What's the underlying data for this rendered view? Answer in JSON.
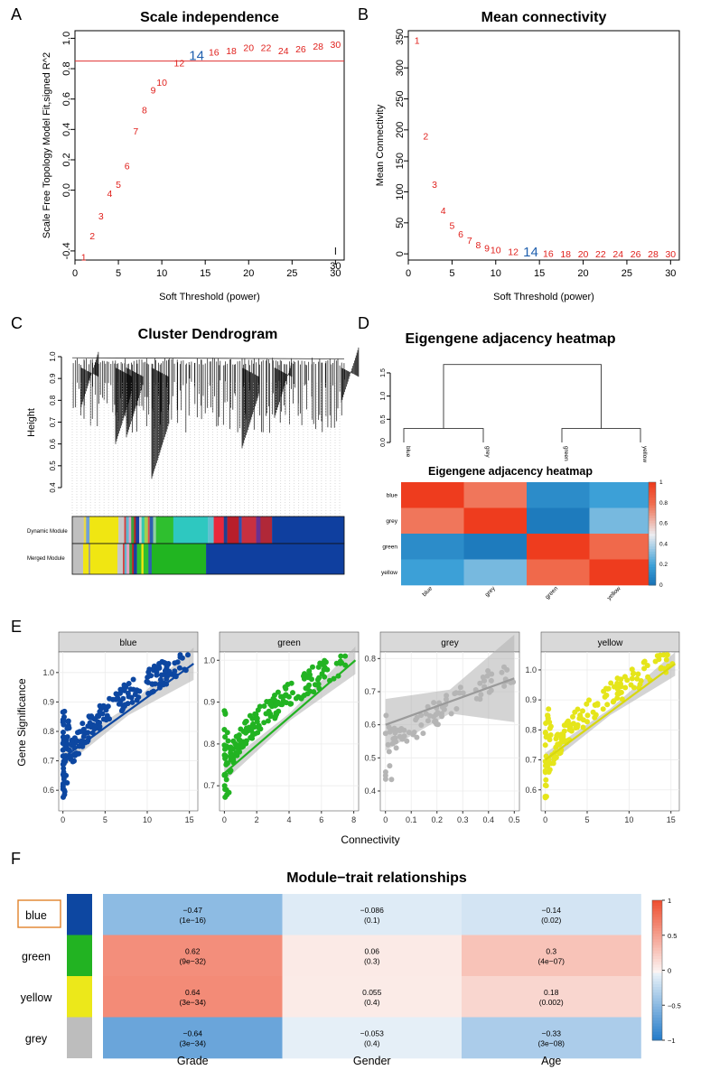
{
  "panels": {
    "a": {
      "letter": "A",
      "title": "Scale independence",
      "xlabel": "Soft Threshold (power)",
      "ylabel": "Scale Free Topology Model Fit,signed R^2"
    },
    "b": {
      "letter": "B",
      "title": "Mean connectivity",
      "xlabel": "Soft Threshold (power)",
      "ylabel": "Mean Connectivity"
    },
    "c": {
      "letter": "C",
      "title": "Cluster Dendrogram",
      "ylabel": "Height",
      "row1": "Dynamic Module",
      "row2": "Merged Module"
    },
    "d": {
      "letter": "D",
      "title": "Eigengene adjacency heatmap",
      "inner_title": "Eigengene adjacency heatmap"
    },
    "e": {
      "letter": "E",
      "ylabel": "Gene Significance",
      "xlabel": "Connectivity"
    },
    "f": {
      "letter": "F",
      "title": "Module−trait relationships"
    }
  },
  "chart_data": [
    {
      "id": "scale_independence",
      "type": "scatter",
      "title": "Scale independence",
      "xlabel": "Soft Threshold (power)",
      "ylabel": "Scale Free Topology Model Fit,signed R^2",
      "xlim": [
        0,
        31
      ],
      "ylim": [
        -0.46,
        1.05
      ],
      "xticks": [
        0,
        5,
        10,
        15,
        20,
        25,
        30
      ],
      "yticks": [
        -0.4,
        0.0,
        0.2,
        0.4,
        0.6,
        0.8,
        1.0
      ],
      "hline": 0.85,
      "highlight": 14,
      "stray_label": "30",
      "points": [
        {
          "x": 1,
          "y": -0.44,
          "label": "1"
        },
        {
          "x": 2,
          "y": -0.3,
          "label": "2"
        },
        {
          "x": 3,
          "y": -0.17,
          "label": "3"
        },
        {
          "x": 4,
          "y": -0.02,
          "label": "4"
        },
        {
          "x": 5,
          "y": 0.04,
          "label": "5"
        },
        {
          "x": 6,
          "y": 0.16,
          "label": "6"
        },
        {
          "x": 7,
          "y": 0.39,
          "label": "7"
        },
        {
          "x": 8,
          "y": 0.53,
          "label": "8"
        },
        {
          "x": 9,
          "y": 0.66,
          "label": "9"
        },
        {
          "x": 10,
          "y": 0.71,
          "label": "10"
        },
        {
          "x": 12,
          "y": 0.84,
          "label": "12"
        },
        {
          "x": 14,
          "y": 0.88,
          "label": "14"
        },
        {
          "x": 16,
          "y": 0.91,
          "label": "16"
        },
        {
          "x": 18,
          "y": 0.92,
          "label": "18"
        },
        {
          "x": 20,
          "y": 0.94,
          "label": "20"
        },
        {
          "x": 22,
          "y": 0.94,
          "label": "22"
        },
        {
          "x": 24,
          "y": 0.92,
          "label": "24"
        },
        {
          "x": 26,
          "y": 0.93,
          "label": "26"
        },
        {
          "x": 28,
          "y": 0.95,
          "label": "28"
        },
        {
          "x": 30,
          "y": 0.96,
          "label": "30"
        }
      ]
    },
    {
      "id": "mean_connectivity",
      "type": "scatter",
      "title": "Mean connectivity",
      "xlabel": "Soft Threshold (power)",
      "ylabel": "Mean Connectivity",
      "xlim": [
        0,
        31
      ],
      "ylim": [
        -10,
        360
      ],
      "xticks": [
        0,
        5,
        10,
        15,
        20,
        25,
        30
      ],
      "yticks": [
        0,
        50,
        100,
        150,
        200,
        250,
        300,
        350
      ],
      "highlight": 14,
      "points": [
        {
          "x": 1,
          "y": 345,
          "label": "1"
        },
        {
          "x": 2,
          "y": 190,
          "label": "2"
        },
        {
          "x": 3,
          "y": 112,
          "label": "3"
        },
        {
          "x": 4,
          "y": 70,
          "label": "4"
        },
        {
          "x": 5,
          "y": 46,
          "label": "5"
        },
        {
          "x": 6,
          "y": 32,
          "label": "6"
        },
        {
          "x": 7,
          "y": 22,
          "label": "7"
        },
        {
          "x": 8,
          "y": 15,
          "label": "8"
        },
        {
          "x": 9,
          "y": 10,
          "label": "9"
        },
        {
          "x": 10,
          "y": 7,
          "label": "10"
        },
        {
          "x": 12,
          "y": 4,
          "label": "12"
        },
        {
          "x": 14,
          "y": 2,
          "label": "14"
        },
        {
          "x": 16,
          "y": 1,
          "label": "16"
        },
        {
          "x": 18,
          "y": 0,
          "label": "18"
        },
        {
          "x": 20,
          "y": 0,
          "label": "20"
        },
        {
          "x": 22,
          "y": 0,
          "label": "22"
        },
        {
          "x": 24,
          "y": 0,
          "label": "24"
        },
        {
          "x": 26,
          "y": 0,
          "label": "26"
        },
        {
          "x": 28,
          "y": 0,
          "label": "28"
        },
        {
          "x": 30,
          "y": 0,
          "label": "30"
        }
      ]
    },
    {
      "id": "cluster_dendrogram",
      "type": "dendrogram",
      "title": "Cluster Dendrogram",
      "ylabel": "Height",
      "ylim": [
        0.4,
        1.0
      ],
      "yticks": [
        0.4,
        0.5,
        0.6,
        0.7,
        0.8,
        0.9,
        1.0
      ],
      "row_labels": [
        "Dynamic Module",
        "Merged Module"
      ],
      "dynamic_segments": [
        {
          "w": 0.04,
          "color": "#bfbfbf"
        },
        {
          "w": 0.008,
          "color": "#e8d84a"
        },
        {
          "w": 0.012,
          "color": "#6fa0d8"
        },
        {
          "w": 0.1,
          "color": "#f0e612"
        },
        {
          "w": 0.02,
          "color": "#c8c8c8"
        },
        {
          "w": 0.006,
          "color": "#d84040"
        },
        {
          "w": 0.01,
          "color": "#5fb8d0"
        },
        {
          "w": 0.008,
          "color": "#e8a0c0"
        },
        {
          "w": 0.01,
          "color": "#3aa040"
        },
        {
          "w": 0.006,
          "color": "#c02020"
        },
        {
          "w": 0.012,
          "color": "#1a3fa0"
        },
        {
          "w": 0.008,
          "color": "#d0d0d0"
        },
        {
          "w": 0.01,
          "color": "#36c8b0"
        },
        {
          "w": 0.012,
          "color": "#a0d050"
        },
        {
          "w": 0.006,
          "color": "#e05050"
        },
        {
          "w": 0.012,
          "color": "#2f5fb0"
        },
        {
          "w": 0.01,
          "color": "#90d0a0"
        },
        {
          "w": 0.06,
          "color": "#2fbf2f"
        },
        {
          "w": 0.12,
          "color": "#2ec8c0"
        },
        {
          "w": 0.02,
          "color": "#60c0d0"
        },
        {
          "w": 0.035,
          "color": "#e8283c"
        },
        {
          "w": 0.012,
          "color": "#204090"
        },
        {
          "w": 0.04,
          "color": "#b81e2a"
        },
        {
          "w": 0.01,
          "color": "#3050b0"
        },
        {
          "w": 0.05,
          "color": "#c83040"
        },
        {
          "w": 0.015,
          "color": "#6a3090"
        },
        {
          "w": 0.04,
          "color": "#b02838"
        },
        {
          "w": 0.25,
          "color": "#0f3f9f"
        }
      ],
      "merged_segments": [
        {
          "w": 0.04,
          "color": "#bfbfbf"
        },
        {
          "w": 0.02,
          "color": "#f0e612"
        },
        {
          "w": 0.006,
          "color": "#9a9a9a"
        },
        {
          "w": 0.1,
          "color": "#f0e612"
        },
        {
          "w": 0.02,
          "color": "#c8c8c8"
        },
        {
          "w": 0.006,
          "color": "#d84040"
        },
        {
          "w": 0.008,
          "color": "#5fb8d0"
        },
        {
          "w": 0.01,
          "color": "#e8a0c0"
        },
        {
          "w": 0.01,
          "color": "#3aa040"
        },
        {
          "w": 0.006,
          "color": "#c02020"
        },
        {
          "w": 0.012,
          "color": "#1a3fa0"
        },
        {
          "w": 0.016,
          "color": "#2fbf2f"
        },
        {
          "w": 0.008,
          "color": "#f0e612"
        },
        {
          "w": 0.018,
          "color": "#2fbf2f"
        },
        {
          "w": 0.012,
          "color": "#2f5fb0"
        },
        {
          "w": 0.2,
          "color": "#21b521"
        },
        {
          "w": 0.508,
          "color": "#0f3f9f"
        }
      ]
    },
    {
      "id": "eigengene_adjacency",
      "type": "heatmap",
      "title": "Eigengene adjacency heatmap",
      "modules": [
        "blue",
        "grey",
        "green",
        "yellow"
      ],
      "dendrogram_yticks": [
        0.0,
        0.5,
        1.0,
        1.5
      ],
      "dendrogram_ylim": [
        0,
        1.85
      ],
      "merges": [
        {
          "a": "blue",
          "b": "grey",
          "h": 0.3
        },
        {
          "a": "green",
          "b": "yellow",
          "h": 0.3
        },
        {
          "a": "blue+grey",
          "b": "green+yellow",
          "h": 1.68
        }
      ],
      "matrix": [
        [
          1.0,
          0.78,
          0.12,
          0.2
        ],
        [
          0.78,
          1.0,
          0.05,
          0.3
        ],
        [
          0.12,
          0.05,
          1.0,
          0.82
        ],
        [
          0.2,
          0.3,
          0.82,
          1.0
        ]
      ],
      "colorbar_ticks": [
        0,
        0.2,
        0.4,
        0.6,
        0.8,
        1
      ]
    },
    {
      "id": "gene_significance",
      "type": "scatter",
      "ylabel": "Gene Significance",
      "xlabel": "Connectivity",
      "facets": [
        {
          "name": "blue",
          "color": "#0d47a1",
          "xlim": [
            -0.5,
            16
          ],
          "ylim": [
            0.53,
            1.07
          ],
          "xticks": [
            0,
            5,
            10,
            15
          ],
          "yticks": [
            0.6,
            0.7,
            0.8,
            0.9,
            1.0
          ],
          "fit": [
            [
              0,
              0.71
            ],
            [
              15.5,
              1.03
            ]
          ],
          "ci": 0.025,
          "seed": 11,
          "n": 230,
          "xmax": 15
        },
        {
          "name": "green",
          "color": "#22b322",
          "xlim": [
            -0.3,
            8.3
          ],
          "ylim": [
            0.64,
            1.02
          ],
          "xticks": [
            0,
            2,
            4,
            6,
            8
          ],
          "yticks": [
            0.7,
            0.8,
            0.9,
            1.0
          ],
          "fit": [
            [
              0,
              0.73
            ],
            [
              8.1,
              1.0
            ]
          ],
          "ci": 0.015,
          "seed": 22,
          "n": 200,
          "xmax": 7.5
        },
        {
          "name": "grey",
          "color": "#b5b5b5",
          "xlim": [
            -0.02,
            0.52
          ],
          "ylim": [
            0.34,
            0.82
          ],
          "xticks": [
            0.0,
            0.1,
            0.2,
            0.3,
            0.4,
            0.5
          ],
          "yticks": [
            0.4,
            0.5,
            0.6,
            0.7,
            0.8
          ],
          "fit": [
            [
              0,
              0.6
            ],
            [
              0.5,
              0.74
            ]
          ],
          "ci": 0.06,
          "seed": 33,
          "n": 90,
          "xmax": 0.5
        },
        {
          "name": "yellow",
          "color": "#e5e51a",
          "xlim": [
            -0.5,
            16
          ],
          "ylim": [
            0.53,
            1.06
          ],
          "xticks": [
            0,
            5,
            10,
            15
          ],
          "yticks": [
            0.6,
            0.7,
            0.8,
            0.9,
            1.0
          ],
          "fit": [
            [
              0,
              0.7
            ],
            [
              15.5,
              1.02
            ]
          ],
          "ci": 0.018,
          "seed": 44,
          "n": 160,
          "xmax": 15.2
        }
      ]
    },
    {
      "id": "module_trait",
      "type": "heatmap",
      "title": "Module−trait relationships",
      "rows": [
        {
          "name": "blue",
          "color": "#0d47a1",
          "cells": [
            {
              "r": -0.47,
              "text": "−0.47",
              "p": "(1e−16)"
            },
            {
              "r": -0.086,
              "text": "−0.086",
              "p": "(0.1)"
            },
            {
              "r": -0.14,
              "text": "−0.14",
              "p": "(0.02)"
            }
          ]
        },
        {
          "name": "green",
          "color": "#22b322",
          "cells": [
            {
              "r": 0.62,
              "text": "0.62",
              "p": "(9e−32)"
            },
            {
              "r": 0.06,
              "text": "0.06",
              "p": "(0.3)"
            },
            {
              "r": 0.3,
              "text": "0.3",
              "p": "(4e−07)"
            }
          ]
        },
        {
          "name": "yellow",
          "color": "#ece81a",
          "cells": [
            {
              "r": 0.64,
              "text": "0.64",
              "p": "(3e−34)"
            },
            {
              "r": 0.055,
              "text": "0.055",
              "p": "(0.4)"
            },
            {
              "r": 0.18,
              "text": "0.18",
              "p": "(0.002)"
            }
          ]
        },
        {
          "name": "grey",
          "color": "#bdbdbd",
          "cells": [
            {
              "r": -0.64,
              "text": "−0.64",
              "p": "(3e−34)"
            },
            {
              "r": -0.053,
              "text": "−0.053",
              "p": "(0.4)"
            },
            {
              "r": -0.33,
              "text": "−0.33",
              "p": "(3e−08)"
            }
          ]
        }
      ],
      "columns": [
        "Grade",
        "Gender",
        "Age"
      ],
      "highlighted_row": "blue",
      "colorbar_ticks": [
        "1",
        "0.5",
        "0",
        "−0.5",
        "−1"
      ]
    }
  ]
}
